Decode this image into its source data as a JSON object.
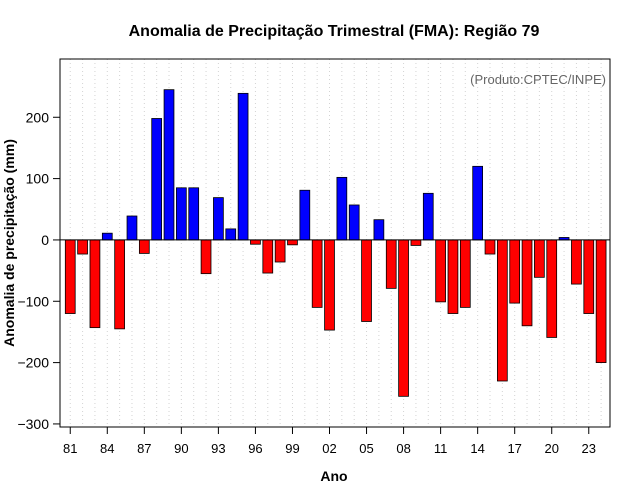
{
  "chart_data": {
    "type": "bar",
    "title": "Anomalia de Precipitação Trimestral (FMA): Região 79",
    "credit": "(Produto:CPTEC/INPE)",
    "xlabel": "Ano",
    "ylabel": "Anomalia de precipitação (mm)",
    "ylim": [
      -305,
      295
    ],
    "yticks": [
      -300,
      -200,
      -100,
      0,
      100,
      200
    ],
    "colors": {
      "positive": "#0000ff",
      "negative": "#ff0000",
      "outline": "#000000",
      "grid": "#d3d3d3"
    },
    "categories": [
      "81",
      "82",
      "83",
      "84",
      "85",
      "86",
      "87",
      "88",
      "89",
      "90",
      "91",
      "92",
      "93",
      "94",
      "95",
      "96",
      "97",
      "98",
      "99",
      "00",
      "01",
      "02",
      "03",
      "04",
      "05",
      "06",
      "07",
      "08",
      "09",
      "10",
      "11",
      "12",
      "13",
      "14",
      "15",
      "16",
      "17",
      "18",
      "19",
      "20",
      "21",
      "22",
      "23",
      "24"
    ],
    "tick_labels": [
      "81",
      "84",
      "87",
      "90",
      "93",
      "96",
      "99",
      "02",
      "05",
      "08",
      "11",
      "14",
      "17",
      "20",
      "23"
    ],
    "values": [
      -120,
      -23,
      -143,
      11,
      -145,
      39,
      -22,
      198,
      245,
      85,
      85,
      -55,
      69,
      18,
      239,
      -7,
      -54,
      -36,
      -8,
      81,
      -110,
      -147,
      102,
      57,
      -133,
      33,
      -79,
      -255,
      -9,
      76,
      -101,
      -120,
      -110,
      120,
      -23,
      -230,
      -103,
      -140,
      -61,
      -159,
      4,
      -72,
      -120,
      -200
    ]
  }
}
